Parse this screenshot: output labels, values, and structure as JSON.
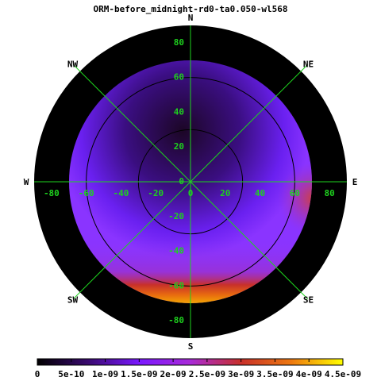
{
  "chart_data": {
    "type": "polar-map",
    "title": "ORM-before_midnight-rd0-ta0.050-wl568",
    "compass": [
      "N",
      "NE",
      "E",
      "SE",
      "S",
      "SW",
      "W",
      "NW"
    ],
    "xlim": [
      -90,
      90
    ],
    "ylim": [
      -90,
      90
    ],
    "xticks": [
      -80,
      -60,
      -40,
      -20,
      0,
      20,
      40,
      60,
      80
    ],
    "yticks": [
      -80,
      -60,
      -40,
      -20,
      0,
      20,
      40,
      60,
      80
    ],
    "grid_circles": [
      30,
      60
    ],
    "map_limit": 70,
    "clim": [
      0,
      4.5e-09
    ],
    "cticks": [
      0,
      5e-10,
      {
        "value": 1e-09,
        "label": "1e-09"
      },
      {
        "value": 1.5e-09,
        "label": "1.5e-09"
      },
      {
        "value": 2e-09,
        "label": "2e-09"
      },
      {
        "value": 2.5e-09,
        "label": "2.5e-09"
      },
      {
        "value": 3e-09,
        "label": "3e-09"
      },
      {
        "value": 3.5e-09,
        "label": "3.5e-09"
      },
      {
        "value": 4e-09,
        "label": "4e-09"
      },
      {
        "value": 4.5e-09,
        "label": "4.5e-09"
      }
    ],
    "colormap": [
      "#000000",
      "#3a0a70",
      "#7a18ff",
      "#a82ad8",
      "#c8302a",
      "#ee7a10",
      "#ffff00"
    ],
    "grid_color": "#1ed21e"
  }
}
